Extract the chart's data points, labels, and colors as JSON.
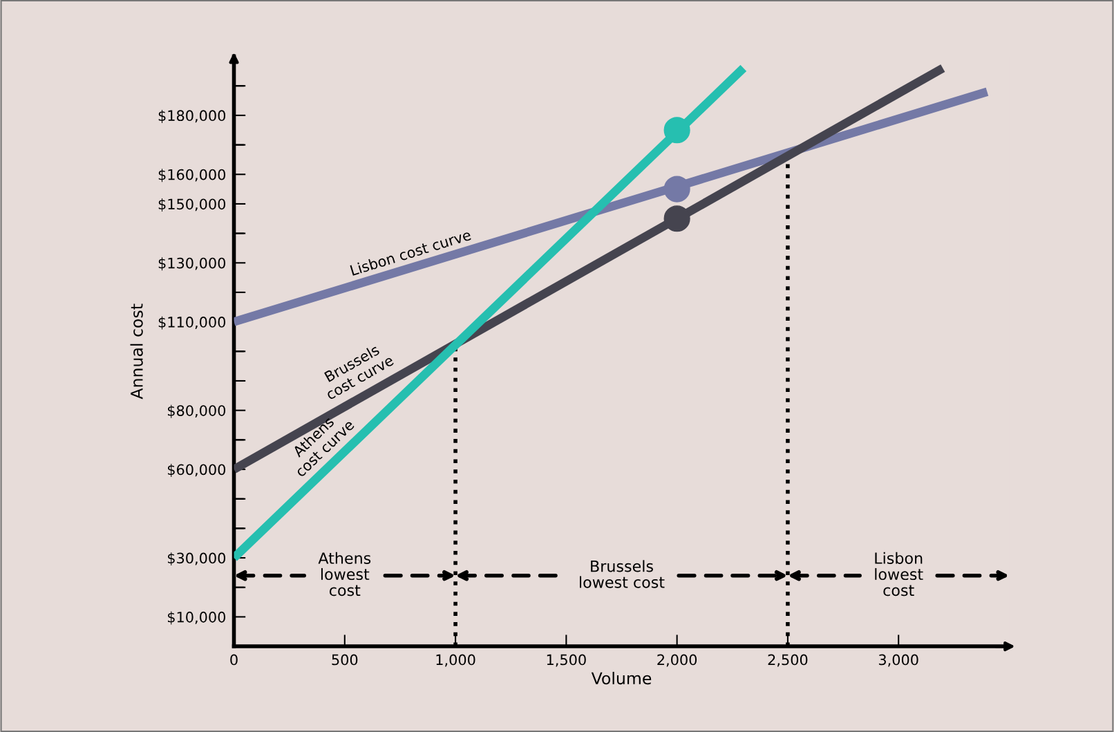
{
  "chart_data": {
    "type": "line",
    "xlabel": "Volume",
    "ylabel": "Annual cost",
    "xlim": [
      0,
      3500
    ],
    "ylim": [
      0,
      200000
    ],
    "xticks": [
      0,
      {
        "value": 500,
        "label": "500"
      },
      {
        "value": 1000,
        "label": "1,000"
      },
      {
        "value": 1500,
        "label": "1,500"
      },
      {
        "value": 2000,
        "label": "2,000"
      },
      {
        "value": 2500,
        "label": "2,500"
      },
      {
        "value": 3000,
        "label": "3,000"
      }
    ],
    "yticks": [
      {
        "value": 10000,
        "label": "$10,000"
      },
      {
        "value": 20000,
        "label": null
      },
      {
        "value": 30000,
        "label": "$30,000"
      },
      {
        "value": 40000,
        "label": null
      },
      {
        "value": 50000,
        "label": null
      },
      {
        "value": 60000,
        "label": "$60,000"
      },
      {
        "value": 70000,
        "label": null
      },
      {
        "value": 80000,
        "label": "$80,000"
      },
      {
        "value": 90000,
        "label": null
      },
      {
        "value": 100000,
        "label": null
      },
      {
        "value": 110000,
        "label": "$110,000"
      },
      {
        "value": 120000,
        "label": null
      },
      {
        "value": 130000,
        "label": "$130,000"
      },
      {
        "value": 140000,
        "label": null
      },
      {
        "value": 150000,
        "label": "$150,000"
      },
      {
        "value": 160000,
        "label": "$160,000"
      },
      {
        "value": 170000,
        "label": null
      },
      {
        "value": 180000,
        "label": "$180,000"
      },
      {
        "value": 190000,
        "label": null
      }
    ],
    "grid": false,
    "series": [
      {
        "name": "Lisbon cost curve",
        "color": "#7479a6",
        "x": [
          0,
          3400
        ],
        "values": [
          110000,
          188000
        ]
      },
      {
        "name": "Brussels\ncost curve",
        "color": "#45444f",
        "x": [
          0,
          3200
        ],
        "values": [
          60000,
          196000
        ]
      },
      {
        "name": "Athens\ncost curve",
        "color": "#26bfb0",
        "x": [
          0,
          2300
        ],
        "values": [
          30000,
          196000
        ]
      },
      {
        "type": "scatter",
        "color": "#26bfb0",
        "x": [
          2000
        ],
        "values": [
          175000
        ],
        "marker": "circle"
      },
      {
        "type": "scatter",
        "color": "#7479a6",
        "x": [
          2000
        ],
        "values": [
          155000
        ],
        "marker": "circle"
      },
      {
        "type": "scatter",
        "color": "#45444f",
        "x": [
          2000
        ],
        "values": [
          145000
        ],
        "marker": "circle"
      }
    ],
    "ref_lines": [
      {
        "axis": "x",
        "value": 1000,
        "line_style": "dotted",
        "color": "#000000"
      },
      {
        "axis": "x",
        "value": 2500,
        "line_style": "dotted",
        "color": "#000000"
      }
    ],
    "annotations": [
      "Athens\nlowest\ncost",
      "Brussels\nlowest cost",
      "Lisbon\nlowest\ncost"
    ]
  }
}
